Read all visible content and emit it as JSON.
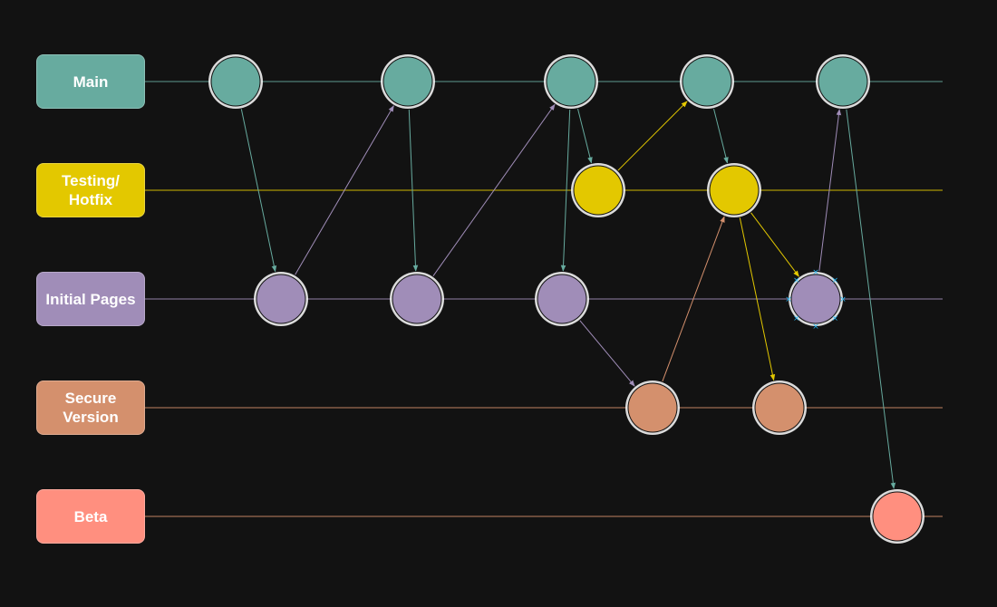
{
  "lanes": [
    {
      "id": "main",
      "label": "Main",
      "color": "#67ab9f",
      "line": "#67ab9f"
    },
    {
      "id": "testing",
      "label": "Testing/\nHotfix",
      "color": "#e3c800",
      "line": "#e3c800"
    },
    {
      "id": "initial",
      "label": "Initial Pages",
      "color": "#a08db8",
      "line": "#a08db8"
    },
    {
      "id": "secure",
      "label": "Secure\nVersion",
      "color": "#d4906d",
      "line": "#d4906d"
    },
    {
      "id": "beta",
      "label": "Beta",
      "color": "#ff8f7f",
      "line": "#d4906d"
    }
  ],
  "commits": [
    {
      "id": "m1",
      "lane": "main"
    },
    {
      "id": "m2",
      "lane": "main"
    },
    {
      "id": "m3",
      "lane": "main"
    },
    {
      "id": "m4",
      "lane": "main"
    },
    {
      "id": "m5",
      "lane": "main"
    },
    {
      "id": "t1",
      "lane": "testing"
    },
    {
      "id": "t2",
      "lane": "testing"
    },
    {
      "id": "i1",
      "lane": "initial"
    },
    {
      "id": "i2",
      "lane": "initial"
    },
    {
      "id": "i3",
      "lane": "initial"
    },
    {
      "id": "i4",
      "lane": "initial",
      "selected": true
    },
    {
      "id": "s1",
      "lane": "secure"
    },
    {
      "id": "s2",
      "lane": "secure"
    },
    {
      "id": "b1",
      "lane": "beta"
    }
  ],
  "links": [
    {
      "from": "m1",
      "to": "i1",
      "color": "#67ab9f"
    },
    {
      "from": "i1",
      "to": "m2",
      "color": "#a08db8"
    },
    {
      "from": "m2",
      "to": "i2",
      "color": "#67ab9f"
    },
    {
      "from": "i2",
      "to": "m3",
      "color": "#a08db8"
    },
    {
      "from": "m3",
      "to": "i3",
      "color": "#67ab9f"
    },
    {
      "from": "m3",
      "to": "t1",
      "color": "#67ab9f"
    },
    {
      "from": "t1",
      "to": "m4",
      "color": "#e3c800"
    },
    {
      "from": "m4",
      "to": "t2",
      "color": "#67ab9f"
    },
    {
      "from": "i3",
      "to": "s1",
      "color": "#a08db8"
    },
    {
      "from": "s1",
      "to": "t2",
      "color": "#d4906d"
    },
    {
      "from": "t2",
      "to": "i4",
      "color": "#e3c800"
    },
    {
      "from": "t2",
      "to": "s2",
      "color": "#e3c800"
    },
    {
      "from": "i4",
      "to": "m5",
      "color": "#a08db8"
    },
    {
      "from": "m5",
      "to": "b1",
      "color": "#67ab9f"
    }
  ]
}
